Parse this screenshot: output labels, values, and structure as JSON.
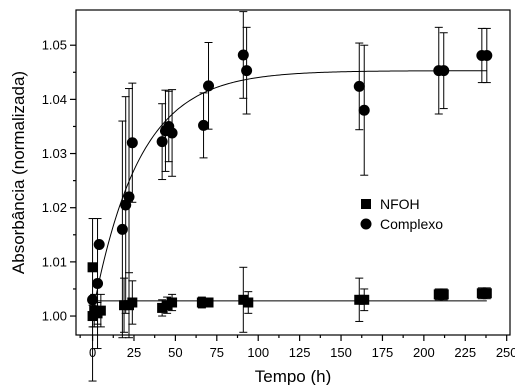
{
  "chart_data": {
    "type": "scatter",
    "xlabel": "Tempo (h)",
    "ylabel": "Absorbância (normalizada)",
    "xlim": [
      -10,
      252
    ],
    "ylim": [
      0.9965,
      1.0565
    ],
    "x_ticks": [
      0,
      25,
      50,
      75,
      100,
      125,
      150,
      175,
      200,
      225,
      250
    ],
    "y_ticks": [
      1.0,
      1.01,
      1.02,
      1.03,
      1.04,
      1.05
    ],
    "y_tick_labels": [
      "1.00",
      "1.01",
      "1.02",
      "1.03",
      "1.04",
      "1.05"
    ],
    "legend_position": "center-right",
    "series": [
      {
        "name": "NFOH",
        "marker": "square",
        "points": [
          {
            "x": 0,
            "y": 1.009,
            "err": 0
          },
          {
            "x": 0,
            "y": 1.0,
            "err": 0.002
          },
          {
            "x": 1,
            "y": 1.001,
            "err": 0.003
          },
          {
            "x": 3,
            "y": 1.0005,
            "err": 0.002
          },
          {
            "x": 5,
            "y": 1.001,
            "err": 0.003
          },
          {
            "x": 19,
            "y": 1.002,
            "err": 0.005
          },
          {
            "x": 22,
            "y": 1.002,
            "err": 0.006
          },
          {
            "x": 24,
            "y": 1.0025,
            "err": 0.004
          },
          {
            "x": 42,
            "y": 1.0015,
            "err": 0.0015
          },
          {
            "x": 45,
            "y": 1.002,
            "err": 0.0015
          },
          {
            "x": 48,
            "y": 1.0025,
            "err": 0.0015
          },
          {
            "x": 66,
            "y": 1.0025,
            "err": 0.001
          },
          {
            "x": 70,
            "y": 1.0025,
            "err": 0.0008
          },
          {
            "x": 91,
            "y": 1.003,
            "err": 0.006
          },
          {
            "x": 94,
            "y": 1.0025,
            "err": 0.002
          },
          {
            "x": 161,
            "y": 1.003,
            "err": 0.004
          },
          {
            "x": 164,
            "y": 1.003,
            "err": 0.002
          },
          {
            "x": 209,
            "y": 1.004,
            "err": 0.001
          },
          {
            "x": 212,
            "y": 1.004,
            "err": 0.001
          },
          {
            "x": 235,
            "y": 1.0042,
            "err": 0.001
          },
          {
            "x": 238,
            "y": 1.0042,
            "err": 0.001
          }
        ],
        "fit": {
          "type": "constant",
          "value": 1.0028,
          "x_range": [
            0,
            238
          ]
        }
      },
      {
        "name": "Complexo",
        "marker": "circle",
        "points": [
          {
            "x": 0,
            "y": 1.003,
            "err": 0.015
          },
          {
            "x": 3,
            "y": 1.006,
            "err": 0.012
          },
          {
            "x": 4,
            "y": 1.0132,
            "err": 0
          },
          {
            "x": 18,
            "y": 1.016,
            "err": 0.02
          },
          {
            "x": 20,
            "y": 1.0205,
            "err": 0.02
          },
          {
            "x": 22,
            "y": 1.022,
            "err": 0.02
          },
          {
            "x": 24,
            "y": 1.032,
            "err": 0.011
          },
          {
            "x": 42,
            "y": 1.0322,
            "err": 0.007
          },
          {
            "x": 44,
            "y": 1.0342,
            "err": 0.0075
          },
          {
            "x": 46,
            "y": 1.035,
            "err": 0.0065
          },
          {
            "x": 48,
            "y": 1.0338,
            "err": 0.008
          },
          {
            "x": 67,
            "y": 1.0352,
            "err": 0.006
          },
          {
            "x": 70,
            "y": 1.0425,
            "err": 0.008
          },
          {
            "x": 91,
            "y": 1.0482,
            "err": 0.008
          },
          {
            "x": 93,
            "y": 1.0453,
            "err": 0.008
          },
          {
            "x": 161,
            "y": 1.0424,
            "err": 0.008
          },
          {
            "x": 164,
            "y": 1.038,
            "err": 0.012
          },
          {
            "x": 209,
            "y": 1.0453,
            "err": 0.008
          },
          {
            "x": 212,
            "y": 1.0453,
            "err": 0.007
          },
          {
            "x": 235,
            "y": 1.0481,
            "err": 0.005
          },
          {
            "x": 238,
            "y": 1.0481,
            "err": 0.005
          }
        ],
        "fit": {
          "type": "exponential-rise",
          "y0": 1.0005,
          "ymax": 1.0453,
          "tau": 28,
          "x_range": [
            0,
            238
          ]
        }
      }
    ]
  }
}
